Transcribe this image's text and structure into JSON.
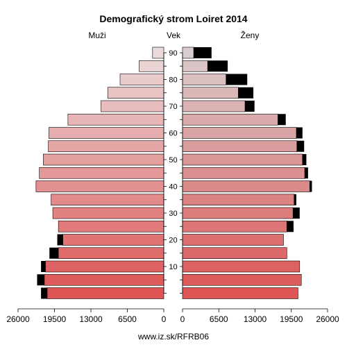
{
  "chart_data": {
    "type": "bar",
    "title": "Demografický strom Loiret 2014",
    "left_label": "Muži",
    "center_label": "Vek",
    "right_label": "Ženy",
    "source": "www.iz.sk/RFRB06",
    "age_groups": [
      "0-4",
      "5-9",
      "10-14",
      "15-19",
      "20-24",
      "25-29",
      "30-34",
      "35-39",
      "40-44",
      "45-49",
      "50-54",
      "55-59",
      "60-64",
      "65-69",
      "70-74",
      "75-79",
      "80-84",
      "85-89",
      "90+"
    ],
    "age_tick_labels": [
      "10",
      "20",
      "30",
      "40",
      "50",
      "60",
      "70",
      "80",
      "90"
    ],
    "x_tick_labels_left": [
      "26000",
      "19500",
      "13000",
      "6500",
      "0"
    ],
    "x_tick_labels_right": [
      "0",
      "6500",
      "13000",
      "19500",
      "26000"
    ],
    "xlim": [
      0,
      26000
    ],
    "series": [
      {
        "side": "left",
        "base_values": [
          20800,
          21300,
          21100,
          18800,
          18000,
          18800,
          19800,
          20100,
          22800,
          22200,
          21500,
          20600,
          20500,
          17100,
          11200,
          10000,
          7800,
          4400,
          2000
        ],
        "extra_values": [
          1100,
          1300,
          800,
          1600,
          1000,
          0,
          0,
          0,
          0,
          0,
          0,
          0,
          0,
          0,
          0,
          0,
          0,
          0,
          0
        ]
      },
      {
        "side": "right",
        "base_values": [
          20700,
          21300,
          21000,
          18700,
          18100,
          18700,
          19800,
          20000,
          22800,
          21900,
          21500,
          20500,
          20400,
          17100,
          11200,
          10000,
          7800,
          4500,
          2000
        ],
        "extra_values": [
          0,
          0,
          0,
          0,
          0,
          1200,
          1200,
          400,
          400,
          600,
          700,
          1300,
          1100,
          1400,
          1700,
          2700,
          3800,
          3600,
          3200
        ]
      }
    ],
    "colors": {
      "male_bottom": "#dd5555",
      "male_top": "#eadada",
      "female_bottom": "#dd5555",
      "female_top": "#d9cccc",
      "extra": "#000000"
    },
    "grid": false
  }
}
